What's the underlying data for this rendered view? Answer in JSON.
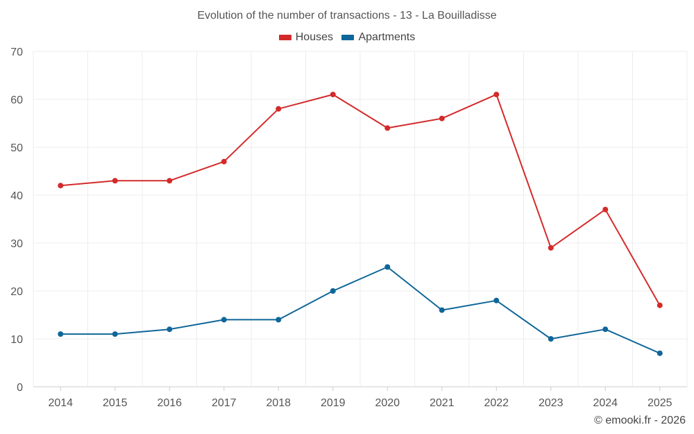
{
  "chart_data": {
    "type": "line",
    "title": "Evolution of the number of transactions - 13 - La Bouilladisse",
    "categories": [
      "2014",
      "2015",
      "2016",
      "2017",
      "2018",
      "2019",
      "2020",
      "2021",
      "2022",
      "2023",
      "2024",
      "2025"
    ],
    "series": [
      {
        "name": "Houses",
        "color": "#d42a2a",
        "values": [
          42,
          43,
          43,
          47,
          58,
          61,
          54,
          56,
          61,
          29,
          37,
          17
        ]
      },
      {
        "name": "Apartments",
        "color": "#0f6699",
        "values": [
          11,
          11,
          12,
          14,
          14,
          20,
          25,
          16,
          18,
          10,
          12,
          7
        ]
      }
    ],
    "yticks": [
      "0",
      "10",
      "20",
      "30",
      "40",
      "50",
      "60",
      "70"
    ],
    "ylim": [
      0,
      70
    ],
    "grid": true,
    "legend_position": "top-center",
    "xlabel": "",
    "ylabel": ""
  },
  "watermark": "© emooki.fr - 2026"
}
